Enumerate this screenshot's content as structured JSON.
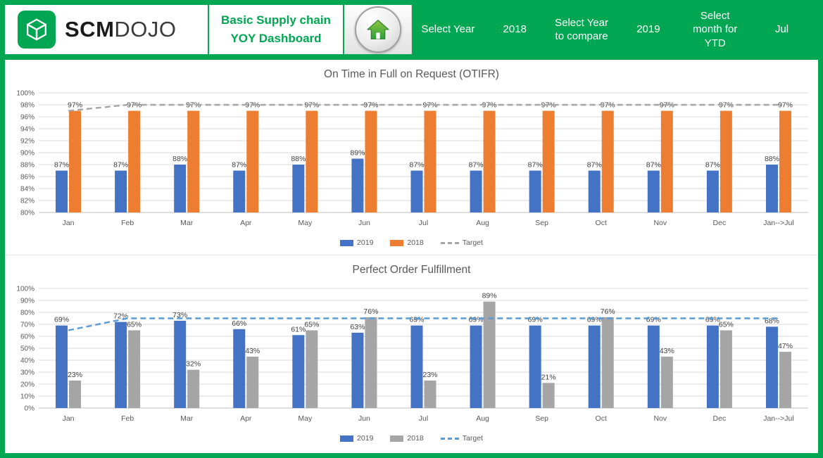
{
  "colors": {
    "brand_green": "#00A651",
    "bar_blue": "#4472C4",
    "bar_orange": "#ED7D31",
    "bar_gray": "#A5A5A5",
    "target_gray": "#A6A6A6",
    "target_blue": "#5B9BD5"
  },
  "header": {
    "brand": {
      "part1": "SCM",
      "part2": "DOJO",
      "logo_icon": "cube-icon"
    },
    "title": {
      "line1": "Basic Supply chain",
      "line2": "YOY Dashboard"
    },
    "home_icon": "home-icon",
    "selectors": [
      {
        "label": "Select Year",
        "value": "2018"
      },
      {
        "label": "Select Year to compare",
        "value": "2019"
      },
      {
        "label": "Select month for YTD",
        "value": "Jul"
      }
    ]
  },
  "chart_data": [
    {
      "type": "bar",
      "title": "On Time in Full on Request (OTIFR)",
      "categories": [
        "Jan",
        "Feb",
        "Mar",
        "Apr",
        "May",
        "Jun",
        "Jul",
        "Aug",
        "Sep",
        "Oct",
        "Nov",
        "Dec",
        "Jan-->Jul"
      ],
      "series": [
        {
          "name": "2019",
          "color": "#4472C4",
          "values": [
            87,
            87,
            88,
            87,
            88,
            89,
            87,
            87,
            87,
            87,
            87,
            87,
            88
          ]
        },
        {
          "name": "2018",
          "color": "#ED7D31",
          "values": [
            97,
            97,
            97,
            97,
            97,
            97,
            97,
            97,
            97,
            97,
            97,
            97,
            97
          ]
        }
      ],
      "target": {
        "name": "Target",
        "color": "#A6A6A6",
        "values": [
          97,
          98,
          98,
          98,
          98,
          98,
          98,
          98,
          98,
          98,
          98,
          98,
          98
        ]
      },
      "ylim": [
        80,
        100
      ],
      "ystep": 2,
      "unit": "%",
      "grid": true,
      "legend_position": "bottom"
    },
    {
      "type": "bar",
      "title": "Perfect Order Fulfillment",
      "categories": [
        "Jan",
        "Feb",
        "Mar",
        "Apr",
        "May",
        "Jun",
        "Jul",
        "Aug",
        "Sep",
        "Oct",
        "Nov",
        "Dec",
        "Jan-->Jul"
      ],
      "series": [
        {
          "name": "2019",
          "color": "#4472C4",
          "values": [
            69,
            72,
            73,
            66,
            61,
            63,
            69,
            69,
            69,
            69,
            69,
            69,
            68
          ]
        },
        {
          "name": "2018",
          "color": "#A5A5A5",
          "values": [
            23,
            65,
            32,
            43,
            65,
            76,
            23,
            89,
            21,
            76,
            43,
            65,
            47
          ]
        }
      ],
      "target": {
        "name": "Target",
        "color": "#5B9BD5",
        "values": [
          65,
          75,
          75,
          75,
          75,
          75,
          75,
          75,
          75,
          75,
          75,
          75,
          75
        ]
      },
      "ylim": [
        0,
        100
      ],
      "ystep": 10,
      "unit": "%",
      "grid": true,
      "legend_position": "bottom"
    }
  ]
}
